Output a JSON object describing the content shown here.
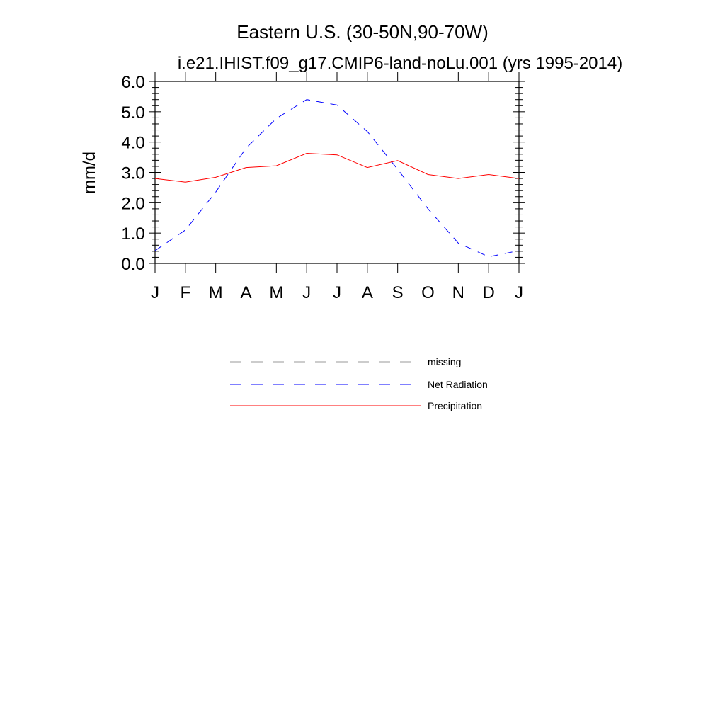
{
  "chart_data": {
    "type": "line",
    "title": "Eastern U.S. (30-50N,90-70W)",
    "subtitle": "i.e21.IHIST.f09_g17.CMIP6-land-noLu.001 (yrs 1995-2014)",
    "xlabel": "",
    "ylabel": "mm/d",
    "ylim": [
      0,
      6
    ],
    "y_ticks": [
      "0.0",
      "1.0",
      "2.0",
      "3.0",
      "4.0",
      "5.0",
      "6.0"
    ],
    "categories": [
      "J",
      "F",
      "M",
      "A",
      "M",
      "J",
      "J",
      "A",
      "S",
      "O",
      "N",
      "D",
      "J"
    ],
    "series": [
      {
        "name": "Net Radiation",
        "color": "#0000ff",
        "dash": "dashed",
        "values": [
          0.42,
          1.1,
          2.35,
          3.8,
          4.78,
          5.4,
          5.22,
          4.35,
          3.1,
          1.8,
          0.67,
          0.22,
          0.42
        ]
      },
      {
        "name": "Precipitation",
        "color": "#ff0000",
        "dash": "solid",
        "values": [
          2.8,
          2.68,
          2.84,
          3.16,
          3.22,
          3.63,
          3.58,
          3.16,
          3.39,
          2.93,
          2.8,
          2.93,
          2.8
        ]
      }
    ],
    "legend": {
      "placement": "bottom",
      "entries": [
        {
          "label": "missing",
          "color": "#999999",
          "dash": "dashed"
        },
        {
          "label": "Net Radiation",
          "color": "#0000ff",
          "dash": "dashed"
        },
        {
          "label": "Precipitation",
          "color": "#ff0000",
          "dash": "solid"
        }
      ]
    },
    "grid": false
  }
}
